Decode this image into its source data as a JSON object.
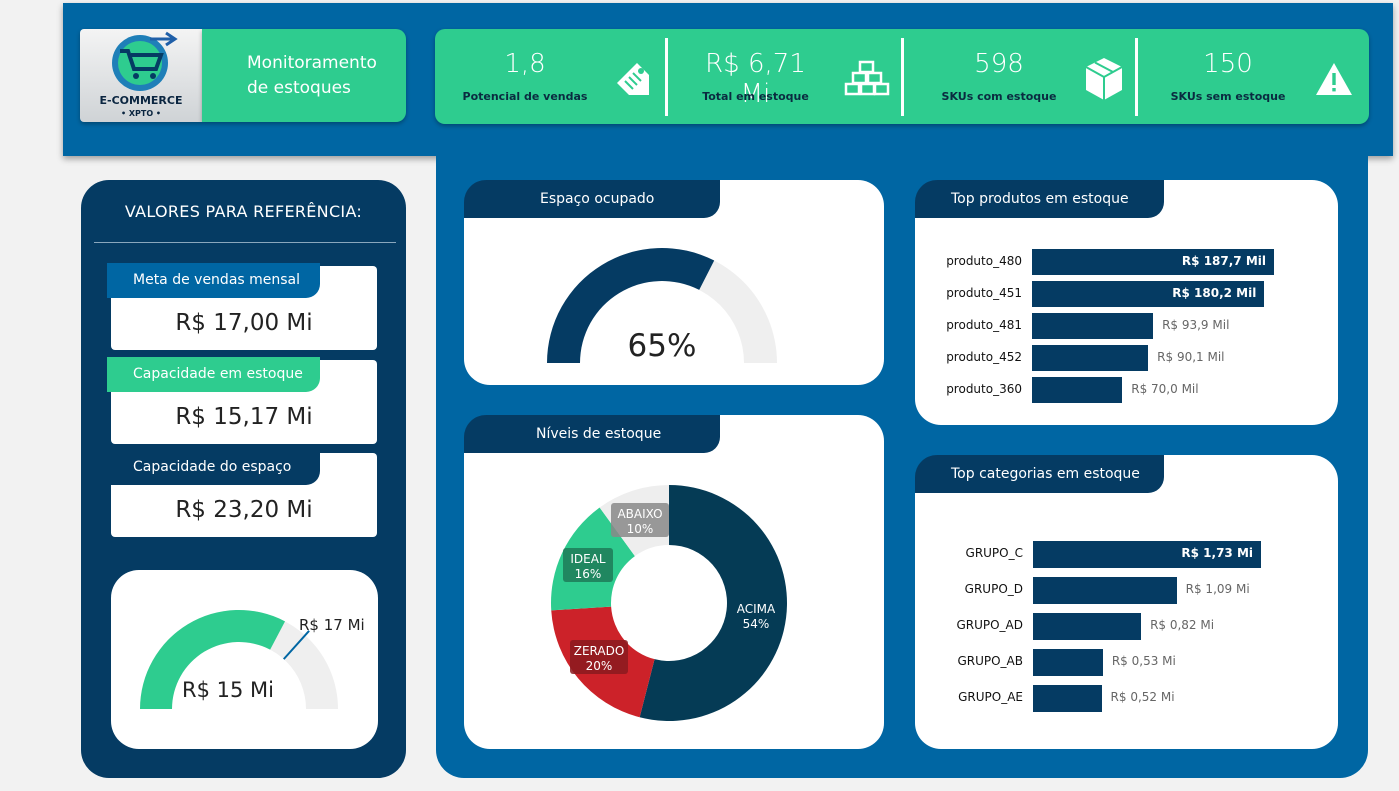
{
  "header": {
    "logo_text_1": "E-COMMERCE",
    "logo_text_2": "• XPTO •",
    "title": "Monitoramento\nde estoques"
  },
  "kpis": [
    {
      "value": "1,8",
      "label": "Potencial de vendas",
      "icon": "price-tag-icon"
    },
    {
      "value": "R$ 6,71 Mi",
      "label": "Total em estoque",
      "icon": "stacked-boxes-icon"
    },
    {
      "value": "598",
      "label": "SKUs com estoque",
      "icon": "box-icon"
    },
    {
      "value": "150",
      "label": "SKUs sem estoque",
      "icon": "warning-icon"
    }
  ],
  "reference": {
    "title": "VALORES PARA REFERÊNCIA:",
    "items": [
      {
        "label": "Meta de vendas mensal",
        "value": "R$ 17,00 Mi",
        "tab_color": "#0066a3"
      },
      {
        "label": "Capacidade em estoque",
        "value": "R$ 15,17 Mi",
        "tab_color": "#2ecc8f"
      },
      {
        "label": "Capacidade do espaço",
        "value": "R$ 23,20 Mi",
        "tab_color": "#053b63"
      }
    ],
    "gauge": {
      "value_label": "R$ 15 Mi",
      "target_label": "R$ 17 Mi",
      "value": 15.17,
      "target": 17,
      "max": 23.2
    }
  },
  "space": {
    "title": "Espaço ocupado",
    "value_label": "65%",
    "value": 0.65
  },
  "stock_levels": {
    "title": "Níveis de estoque",
    "segments": [
      {
        "name": "ACIMA",
        "pct": "54%",
        "value": 54,
        "color": "#053b55"
      },
      {
        "name": "ZERADO",
        "pct": "20%",
        "value": 20,
        "color": "#cc2229"
      },
      {
        "name": "IDEAL",
        "pct": "16%",
        "value": 16,
        "color": "#2ecc8f"
      },
      {
        "name": "ABAIXO",
        "pct": "10%",
        "value": 10,
        "color": "#eeeeee"
      }
    ]
  },
  "top_products": {
    "title": "Top produtos em estoque",
    "items": [
      {
        "name": "produto_480",
        "value": 187.7,
        "label": "R$ 187,7 Mil"
      },
      {
        "name": "produto_451",
        "value": 180.2,
        "label": "R$ 180,2 Mil"
      },
      {
        "name": "produto_481",
        "value": 93.9,
        "label": "R$ 93,9 Mil"
      },
      {
        "name": "produto_452",
        "value": 90.1,
        "label": "R$ 90,1 Mil"
      },
      {
        "name": "produto_360",
        "value": 70.0,
        "label": "R$ 70,0 Mil"
      }
    ]
  },
  "top_categories": {
    "title": "Top categorias em estoque",
    "items": [
      {
        "name": "GRUPO_C",
        "value": 1.73,
        "label": "R$ 1,73 Mi"
      },
      {
        "name": "GRUPO_D",
        "value": 1.09,
        "label": "R$ 1,09 Mi"
      },
      {
        "name": "GRUPO_AD",
        "value": 0.82,
        "label": "R$ 0,82 Mi"
      },
      {
        "name": "GRUPO_AB",
        "value": 0.53,
        "label": "R$ 0,53 Mi"
      },
      {
        "name": "GRUPO_AE",
        "value": 0.52,
        "label": "R$ 0,52 Mi"
      }
    ]
  },
  "colors": {
    "blue": "#0066a3",
    "navy": "#053b63",
    "green": "#2ecc8f",
    "red": "#cc2229"
  }
}
